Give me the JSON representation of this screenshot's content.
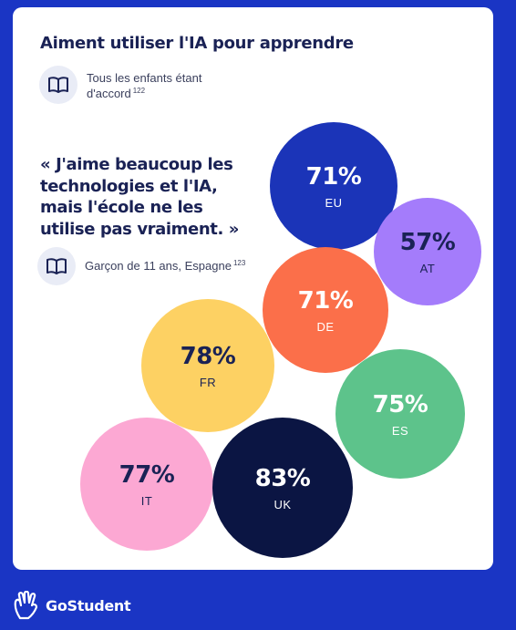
{
  "title": "Aiment utiliser l'IA pour apprendre",
  "note1": {
    "text": "Tous les enfants étant d'accord",
    "ref": "122"
  },
  "quote": "« J'aime beaucoup les\ntechnologies et l'IA,\nmais l'école ne les\nutilise pas vraiment. »",
  "note2": {
    "text": "Garçon de 11 ans, Espagne",
    "ref": "123"
  },
  "icons": {
    "note": "open-book-icon",
    "brand": "hand-logo-icon"
  },
  "brand": "GoStudent",
  "colors": {
    "background": "#1a35c4",
    "EU": "#1b34b8",
    "AT": "#a47cfb",
    "DE": "#fb6f4a",
    "FR": "#fdd163",
    "ES": "#5dc38b",
    "IT": "#fca8d3",
    "UK": "#0b1543"
  },
  "chart_data": {
    "type": "bubble",
    "title": "Aiment utiliser l'IA pour apprendre",
    "categories": [
      "EU",
      "AT",
      "DE",
      "FR",
      "ES",
      "IT",
      "UK"
    ],
    "values": [
      71,
      57,
      71,
      78,
      75,
      77,
      83
    ],
    "labels": [
      "71%",
      "57%",
      "71%",
      "78%",
      "75%",
      "77%",
      "83%"
    ],
    "unit": "%"
  }
}
